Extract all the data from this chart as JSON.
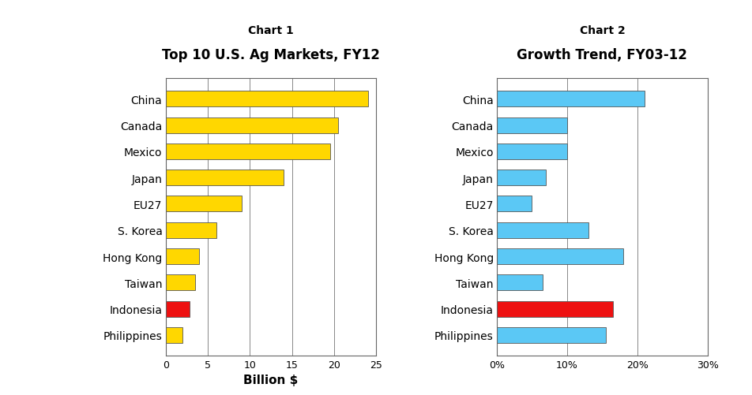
{
  "chart1": {
    "title_super": "Chart 1",
    "title": "Top 10 U.S. Ag Markets, FY12",
    "xlabel": "Billion $",
    "categories": [
      "China",
      "Canada",
      "Mexico",
      "Japan",
      "EU27",
      "S. Korea",
      "Hong Kong",
      "Taiwan",
      "Indonesia",
      "Philippines"
    ],
    "values": [
      24.0,
      20.5,
      19.5,
      14.0,
      9.0,
      6.0,
      4.0,
      3.5,
      2.8,
      2.0
    ],
    "colors": [
      "#FFD700",
      "#FFD700",
      "#FFD700",
      "#FFD700",
      "#FFD700",
      "#FFD700",
      "#FFD700",
      "#FFD700",
      "#EE1111",
      "#FFD700"
    ],
    "xlim": [
      0,
      25
    ],
    "xticks": [
      0,
      5,
      10,
      15,
      20,
      25
    ]
  },
  "chart2": {
    "title_super": "Chart 2",
    "title": "Growth Trend, FY03-12",
    "categories": [
      "China",
      "Canada",
      "Mexico",
      "Japan",
      "EU27",
      "S. Korea",
      "Hong Kong",
      "Taiwan",
      "Indonesia",
      "Philippines"
    ],
    "values": [
      0.21,
      0.1,
      0.1,
      0.07,
      0.05,
      0.13,
      0.18,
      0.065,
      0.165,
      0.155
    ],
    "colors": [
      "#5BC8F5",
      "#5BC8F5",
      "#5BC8F5",
      "#5BC8F5",
      "#5BC8F5",
      "#5BC8F5",
      "#5BC8F5",
      "#5BC8F5",
      "#EE1111",
      "#5BC8F5"
    ],
    "xlim": [
      0,
      0.3
    ],
    "xticks": [
      0,
      0.1,
      0.2,
      0.3
    ],
    "xticklabels": [
      "0%",
      "10%",
      "20%",
      "30%"
    ]
  },
  "bar_edge_color": "#555555",
  "bar_linewidth": 0.6,
  "title_super_fontsize": 10,
  "title_fontsize": 12,
  "label_fontsize": 10,
  "tick_fontsize": 9,
  "xlabel_fontsize": 11,
  "background_color": "#FFFFFF",
  "grid_color": "#888888"
}
